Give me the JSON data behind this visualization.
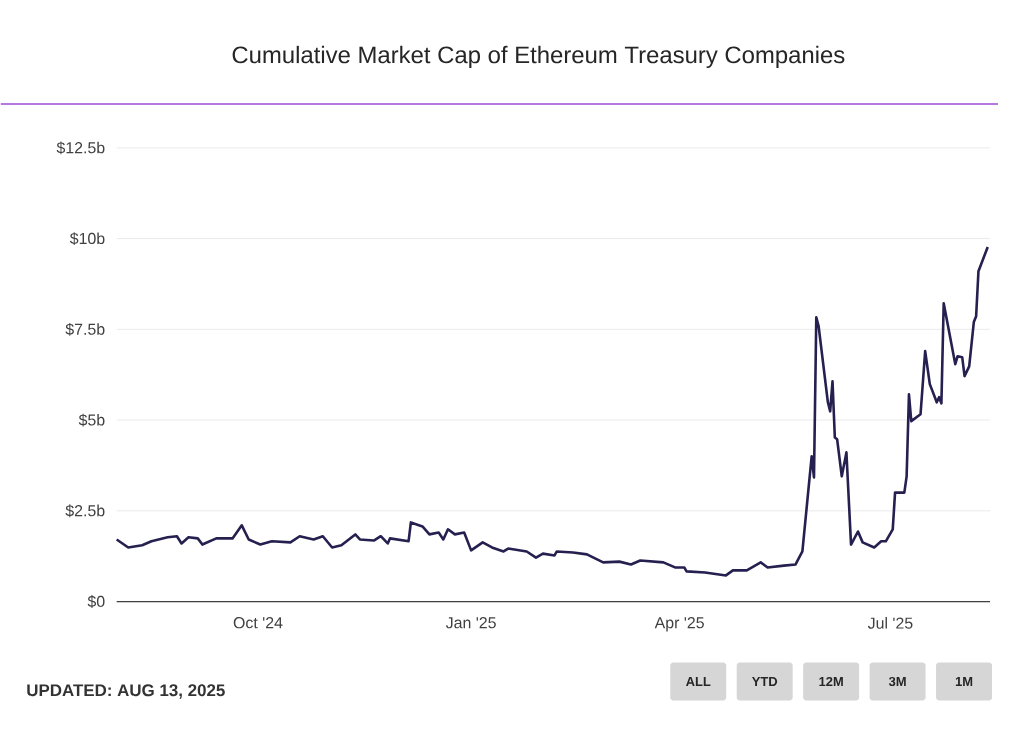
{
  "chart_data": {
    "type": "line",
    "title": "Cumulative Market Cap of Ethereum Treasury Companies",
    "x": [
      "2024-08-01",
      "2024-08-06",
      "2024-08-12",
      "2024-08-16",
      "2024-08-23",
      "2024-08-27",
      "2024-08-29",
      "2024-09-01",
      "2024-09-05",
      "2024-09-07",
      "2024-09-13",
      "2024-09-20",
      "2024-09-24",
      "2024-09-27",
      "2024-10-02",
      "2024-10-07",
      "2024-10-15",
      "2024-10-19",
      "2024-10-25",
      "2024-10-29",
      "2024-11-02",
      "2024-11-06",
      "2024-11-12",
      "2024-11-14",
      "2024-11-20",
      "2024-11-23",
      "2024-11-26",
      "2024-11-27",
      "2024-12-05",
      "2024-12-06",
      "2024-12-11",
      "2024-12-14",
      "2024-12-18",
      "2024-12-20",
      "2024-12-22",
      "2024-12-25",
      "2024-12-29",
      "2025-01-01",
      "2025-01-06",
      "2025-01-10",
      "2025-01-15",
      "2025-01-17",
      "2025-01-25",
      "2025-01-29",
      "2025-02-01",
      "2025-02-06",
      "2025-02-07",
      "2025-02-14",
      "2025-02-20",
      "2025-02-27",
      "2025-03-06",
      "2025-03-11",
      "2025-03-15",
      "2025-03-25",
      "2025-03-30",
      "2025-04-03",
      "2025-04-04",
      "2025-04-12",
      "2025-04-21",
      "2025-04-24",
      "2025-04-30",
      "2025-05-06",
      "2025-05-09",
      "2025-05-16",
      "2025-05-21",
      "2025-05-24",
      "2025-05-28",
      "2025-05-29",
      "2025-05-30",
      "2025-05-31",
      "2025-06-04",
      "2025-06-05",
      "2025-06-06",
      "2025-06-07",
      "2025-06-08",
      "2025-06-10",
      "2025-06-12",
      "2025-06-14",
      "2025-06-17",
      "2025-06-19",
      "2025-06-24",
      "2025-06-27",
      "2025-06-29",
      "2025-07-02",
      "2025-07-03",
      "2025-07-07",
      "2025-07-08",
      "2025-07-09",
      "2025-07-10",
      "2025-07-14",
      "2025-07-16",
      "2025-07-18",
      "2025-07-21",
      "2025-07-22",
      "2025-07-23",
      "2025-07-24",
      "2025-07-29",
      "2025-07-30",
      "2025-08-01",
      "2025-08-02",
      "2025-08-04",
      "2025-08-06",
      "2025-08-07",
      "2025-08-08",
      "2025-08-12"
    ],
    "values": [
      1.71,
      1.49,
      1.55,
      1.66,
      1.77,
      1.8,
      1.6,
      1.77,
      1.74,
      1.57,
      1.74,
      1.74,
      2.1,
      1.71,
      1.57,
      1.66,
      1.63,
      1.8,
      1.71,
      1.8,
      1.49,
      1.55,
      1.85,
      1.71,
      1.68,
      1.8,
      1.6,
      1.74,
      1.66,
      2.18,
      2.07,
      1.85,
      1.9,
      1.71,
      1.99,
      1.85,
      1.9,
      1.41,
      1.63,
      1.49,
      1.38,
      1.46,
      1.38,
      1.21,
      1.32,
      1.27,
      1.38,
      1.35,
      1.3,
      1.08,
      1.1,
      1.02,
      1.13,
      1.08,
      0.94,
      0.94,
      0.83,
      0.8,
      0.72,
      0.86,
      0.86,
      1.08,
      0.94,
      0.99,
      1.02,
      1.38,
      4.0,
      3.42,
      7.83,
      7.59,
      5.49,
      5.24,
      6.07,
      4.52,
      4.47,
      3.45,
      4.11,
      1.57,
      1.93,
      1.63,
      1.49,
      1.66,
      1.66,
      1.99,
      3.0,
      3.0,
      3.45,
      5.71,
      4.97,
      5.16,
      6.9,
      5.99,
      5.49,
      5.63,
      5.46,
      8.22,
      6.54,
      6.76,
      6.73,
      6.21,
      6.48,
      7.7,
      7.86,
      9.1,
      9.77
    ],
    "color": "#25204f",
    "line_style": "solid",
    "xlim": [
      "2024-08-01",
      "2025-08-13"
    ],
    "xticks": [
      {
        "value": "2024-10-01",
        "label": "Oct '24"
      },
      {
        "value": "2025-01-01",
        "label": "Jan '25"
      },
      {
        "value": "2025-04-01",
        "label": "Apr '25"
      },
      {
        "value": "2025-07-01",
        "label": "Jul '25"
      }
    ],
    "ylim": [
      0,
      12.5
    ],
    "yticks": [
      {
        "value": 0,
        "label": "$0"
      },
      {
        "value": 2.5,
        "label": "$2.5b"
      },
      {
        "value": 5,
        "label": "$5b"
      },
      {
        "value": 7.5,
        "label": "$7.5b"
      },
      {
        "value": 10,
        "label": "$10b"
      },
      {
        "value": 12.5,
        "label": "$12.5b"
      }
    ],
    "grid": "y",
    "annotations": [
      "UPDATED: AUG 13, 2025",
      "ALL",
      "YTD",
      "12M",
      "3M",
      "1M"
    ]
  }
}
